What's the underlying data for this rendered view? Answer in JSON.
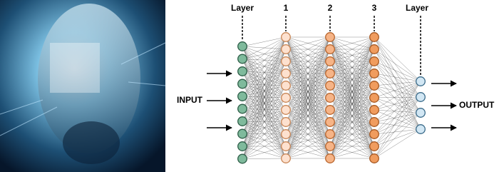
{
  "diagram": {
    "layers": [
      {
        "label": "Layer"
      },
      {
        "label": "1"
      },
      {
        "label": "2"
      },
      {
        "label": "3"
      },
      {
        "label": "Layer"
      }
    ],
    "input_label": "INPUT",
    "output_label": "OUTPUT"
  }
}
